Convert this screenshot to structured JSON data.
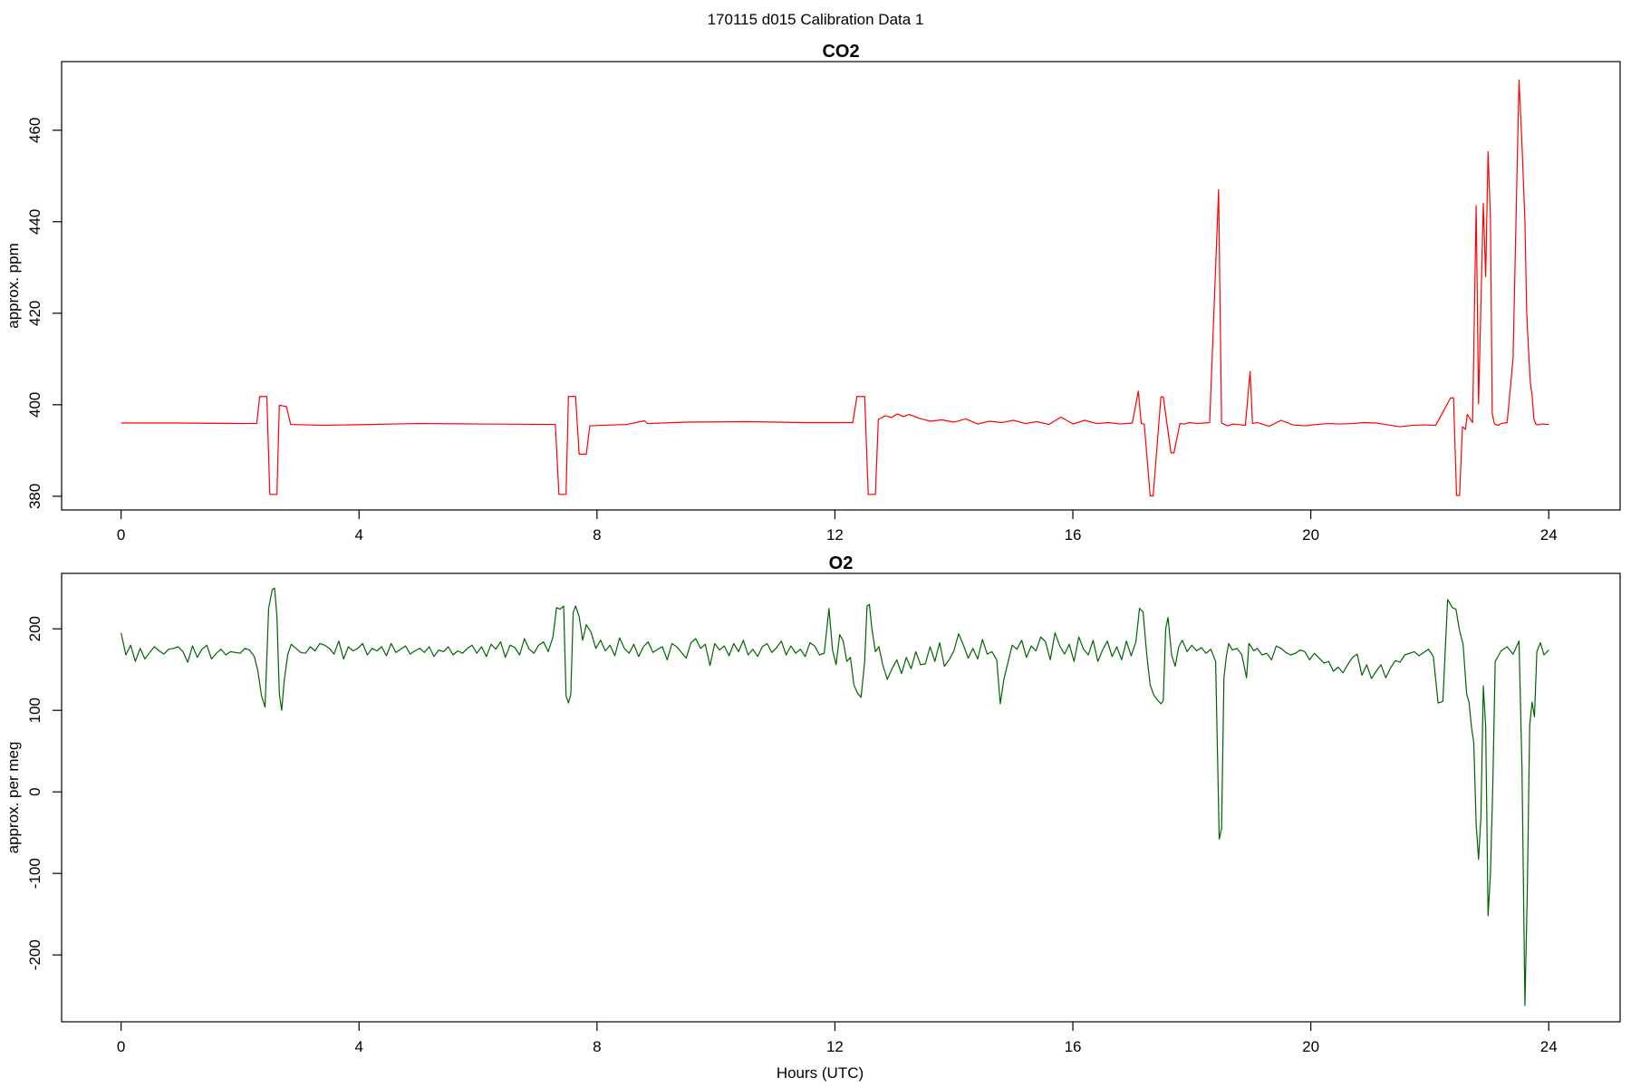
{
  "figure": {
    "title": "170115   d015   Calibration Data 1",
    "xlabel": "Hours (UTC)"
  },
  "chart_data": [
    {
      "type": "line",
      "title": "CO2",
      "xlabel": "",
      "ylabel": "approx. ppm",
      "xlim": [
        -1.0,
        25.2
      ],
      "ylim": [
        377,
        475
      ],
      "xticks": [
        0,
        4,
        8,
        12,
        16,
        20,
        24
      ],
      "yticks": [
        380,
        400,
        420,
        440,
        460
      ],
      "grid": false,
      "series": [
        {
          "color": "#ff0000",
          "x": [
            0,
            1,
            2,
            2.28,
            2.33,
            2.45,
            2.5,
            2.62,
            2.66,
            2.78,
            2.85,
            3.4,
            5,
            6,
            7.3,
            7.36,
            7.48,
            7.52,
            7.64,
            7.7,
            7.82,
            7.88,
            8.5,
            8.8,
            8.85,
            9.5,
            10.5,
            11.5,
            12.3,
            12.37,
            12.5,
            12.56,
            12.68,
            12.73,
            12.85,
            12.95,
            13.05,
            13.15,
            13.25,
            13.4,
            13.6,
            13.8,
            14,
            14.2,
            14.4,
            14.6,
            14.8,
            15,
            15.2,
            15.4,
            15.6,
            15.8,
            16,
            16.2,
            16.4,
            16.6,
            16.8,
            17.0,
            17.1,
            17.15,
            17.2,
            17.3,
            17.35,
            17.48,
            17.52,
            17.65,
            17.7,
            17.8,
            17.88,
            17.95,
            18.1,
            18.3,
            18.45,
            18.5,
            18.55,
            18.6,
            18.7,
            18.9,
            18.98,
            19.02,
            19.1,
            19.3,
            19.5,
            19.7,
            19.9,
            20.1,
            20.3,
            20.5,
            20.7,
            20.9,
            21.1,
            21.3,
            21.5,
            21.7,
            21.9,
            22.1,
            22.35,
            22.4,
            22.45,
            22.5,
            22.55,
            22.6,
            22.63,
            22.72,
            22.78,
            22.82,
            22.9,
            22.94,
            22.98,
            23.02,
            23.05,
            23.08,
            23.1,
            23.15,
            23.2,
            23.3,
            23.4,
            23.5,
            23.55,
            23.6,
            23.63,
            23.66,
            23.69,
            23.72,
            23.75,
            23.78,
            23.82,
            23.88,
            24.0
          ],
          "y": [
            396,
            396,
            395.9,
            395.9,
            401.8,
            401.8,
            380.4,
            380.4,
            399.9,
            399.6,
            395.7,
            395.5,
            395.9,
            395.8,
            395.7,
            380.4,
            380.4,
            401.8,
            401.8,
            389.2,
            389.2,
            395.4,
            395.7,
            396.5,
            395.9,
            396.2,
            396.3,
            396.1,
            396.1,
            401.8,
            401.8,
            380.4,
            380.4,
            396.8,
            397.6,
            397.2,
            398,
            397.4,
            397.9,
            397.1,
            396.4,
            396.7,
            396.2,
            396.9,
            395.8,
            396.4,
            396.1,
            396.6,
            395.9,
            396.3,
            395.7,
            397.3,
            395.8,
            396.6,
            395.9,
            396.1,
            395.8,
            396,
            403,
            395.9,
            395.8,
            380.1,
            380.1,
            401.7,
            401.7,
            389.5,
            389.5,
            395.9,
            395.8,
            396.1,
            395.9,
            396.1,
            447,
            396,
            395.7,
            395.4,
            395.8,
            395.5,
            407.3,
            395.9,
            396.1,
            395.3,
            396.6,
            395.6,
            395.4,
            395.7,
            395.9,
            395.8,
            395.9,
            396.1,
            396,
            395.6,
            395.2,
            395.5,
            395.6,
            395.5,
            401.5,
            401.5,
            380.2,
            380.2,
            395.2,
            394.6,
            397.9,
            396.1,
            443.5,
            400.2,
            444,
            428,
            455.3,
            440.7,
            398.2,
            396.1,
            395.7,
            395.5,
            395.9,
            396.1,
            410,
            471,
            457,
            440,
            420,
            412,
            405,
            402,
            397,
            395.8,
            395.6,
            395.8,
            395.7
          ]
        }
      ]
    },
    {
      "type": "line",
      "title": "O2",
      "xlabel": "Hours (UTC)",
      "ylabel": "approx. per meg",
      "xlim": [
        -1.0,
        25.2
      ],
      "ylim": [
        -282,
        268
      ],
      "xticks": [
        0,
        4,
        8,
        12,
        16,
        20,
        24
      ],
      "yticks": [
        -200,
        -100,
        0,
        100,
        200
      ],
      "grid": false,
      "series": [
        {
          "color": "#006400",
          "x": [
            0,
            0.08,
            0.16,
            0.24,
            0.32,
            0.4,
            0.48,
            0.56,
            0.64,
            0.72,
            0.8,
            0.88,
            0.96,
            1.04,
            1.12,
            1.2,
            1.28,
            1.36,
            1.44,
            1.52,
            1.6,
            1.68,
            1.76,
            1.84,
            1.92,
            2.0,
            2.08,
            2.16,
            2.24,
            2.3,
            2.36,
            2.42,
            2.48,
            2.54,
            2.58,
            2.62,
            2.66,
            2.7,
            2.74,
            2.8,
            2.86,
            2.94,
            3.02,
            3.1,
            3.18,
            3.26,
            3.34,
            3.42,
            3.5,
            3.58,
            3.66,
            3.74,
            3.82,
            3.9,
            3.98,
            4.06,
            4.14,
            4.22,
            4.3,
            4.38,
            4.46,
            4.54,
            4.62,
            4.7,
            4.78,
            4.86,
            4.94,
            5.02,
            5.1,
            5.18,
            5.26,
            5.34,
            5.42,
            5.5,
            5.58,
            5.66,
            5.74,
            5.82,
            5.9,
            5.98,
            6.06,
            6.14,
            6.22,
            6.3,
            6.38,
            6.46,
            6.54,
            6.62,
            6.7,
            6.78,
            6.86,
            6.94,
            7.02,
            7.1,
            7.18,
            7.26,
            7.32,
            7.38,
            7.44,
            7.48,
            7.52,
            7.56,
            7.6,
            7.64,
            7.7,
            7.76,
            7.82,
            7.9,
            7.98,
            8.06,
            8.14,
            8.22,
            8.3,
            8.38,
            8.46,
            8.54,
            8.62,
            8.7,
            8.78,
            8.86,
            8.94,
            9.02,
            9.1,
            9.18,
            9.26,
            9.34,
            9.42,
            9.5,
            9.58,
            9.66,
            9.74,
            9.82,
            9.9,
            9.98,
            10.06,
            10.14,
            10.22,
            10.3,
            10.38,
            10.46,
            10.54,
            10.62,
            10.7,
            10.78,
            10.86,
            10.94,
            11.02,
            11.1,
            11.18,
            11.26,
            11.34,
            11.42,
            11.5,
            11.58,
            11.66,
            11.74,
            11.82,
            11.9,
            11.96,
            12.02,
            12.08,
            12.14,
            12.2,
            12.26,
            12.32,
            12.38,
            12.44,
            12.5,
            12.54,
            12.58,
            12.62,
            12.68,
            12.74,
            12.8,
            12.88,
            12.96,
            13.04,
            13.12,
            13.2,
            13.28,
            13.36,
            13.44,
            13.52,
            13.6,
            13.68,
            13.76,
            13.84,
            13.92,
            14.0,
            14.08,
            14.16,
            14.24,
            14.32,
            14.4,
            14.48,
            14.56,
            14.64,
            14.72,
            14.78,
            14.84,
            14.9,
            14.98,
            15.06,
            15.14,
            15.22,
            15.3,
            15.38,
            15.46,
            15.54,
            15.62,
            15.7,
            15.78,
            15.86,
            15.94,
            16.02,
            16.1,
            16.18,
            16.26,
            16.34,
            16.42,
            16.5,
            16.58,
            16.66,
            16.74,
            16.82,
            16.9,
            16.98,
            17.06,
            17.12,
            17.18,
            17.24,
            17.3,
            17.36,
            17.42,
            17.48,
            17.52,
            17.56,
            17.6,
            17.66,
            17.72,
            17.78,
            17.84,
            17.92,
            18.0,
            18.08,
            18.16,
            18.24,
            18.32,
            18.4,
            18.46,
            18.5,
            18.54,
            18.58,
            18.62,
            18.68,
            18.76,
            18.84,
            18.92,
            18.96,
            19.0,
            19.04,
            19.1,
            19.18,
            19.26,
            19.34,
            19.42,
            19.5,
            19.58,
            19.66,
            19.74,
            19.82,
            19.9,
            19.98,
            20.06,
            20.14,
            20.22,
            20.3,
            20.38,
            20.46,
            20.54,
            20.62,
            20.7,
            20.78,
            20.86,
            20.94,
            21.02,
            21.1,
            21.18,
            21.26,
            21.34,
            21.42,
            21.5,
            21.58,
            21.66,
            21.74,
            21.82,
            21.9,
            21.98,
            22.06,
            22.14,
            22.22,
            22.3,
            22.38,
            22.44,
            22.5,
            22.56,
            22.62,
            22.66,
            22.7,
            22.74,
            22.78,
            22.82,
            22.86,
            22.9,
            22.94,
            22.98,
            23.02,
            23.06,
            23.1,
            23.2,
            23.3,
            23.4,
            23.5,
            23.55,
            23.6,
            23.64,
            23.68,
            23.72,
            23.76,
            23.8,
            23.86,
            23.92,
            24.0
          ],
          "y": [
            195,
            168,
            180,
            160,
            176,
            163,
            171,
            178,
            173,
            169,
            175,
            176,
            178,
            172,
            159,
            179,
            165,
            175,
            180,
            163,
            170,
            175,
            168,
            172,
            171,
            170,
            176,
            174,
            166,
            148,
            118,
            104,
            225,
            248,
            250,
            215,
            120,
            100,
            135,
            168,
            181,
            176,
            171,
            170,
            178,
            173,
            182,
            180,
            176,
            169,
            185,
            163,
            178,
            173,
            176,
            182,
            168,
            176,
            173,
            178,
            167,
            182,
            171,
            175,
            179,
            169,
            173,
            176,
            171,
            178,
            166,
            174,
            172,
            178,
            168,
            173,
            170,
            176,
            180,
            170,
            178,
            166,
            181,
            175,
            184,
            165,
            180,
            177,
            168,
            188,
            175,
            170,
            180,
            184,
            172,
            190,
            226,
            224,
            228,
            118,
            109,
            120,
            220,
            228,
            215,
            186,
            205,
            196,
            176,
            186,
            173,
            180,
            167,
            189,
            176,
            170,
            181,
            166,
            178,
            184,
            171,
            175,
            178,
            162,
            182,
            178,
            171,
            164,
            183,
            188,
            176,
            181,
            155,
            182,
            174,
            179,
            167,
            182,
            172,
            186,
            168,
            175,
            166,
            178,
            182,
            171,
            177,
            185,
            168,
            179,
            170,
            175,
            166,
            183,
            179,
            168,
            170,
            225,
            174,
            156,
            193,
            185,
            160,
            165,
            131,
            121,
            116,
            160,
            228,
            230,
            201,
            172,
            178,
            157,
            138,
            151,
            162,
            145,
            165,
            151,
            172,
            156,
            157,
            178,
            160,
            183,
            154,
            162,
            173,
            194,
            180,
            164,
            176,
            163,
            187,
            169,
            172,
            162,
            108,
            138,
            156,
            180,
            175,
            186,
            165,
            179,
            173,
            190,
            184,
            162,
            195,
            179,
            169,
            181,
            160,
            190,
            175,
            168,
            186,
            160,
            174,
            185,
            166,
            178,
            162,
            185,
            167,
            184,
            225,
            221,
            170,
            131,
            119,
            113,
            108,
            112,
            200,
            214,
            168,
            154,
            178,
            186,
            172,
            180,
            173,
            177,
            170,
            175,
            160,
            -58,
            -45,
            140,
            166,
            182,
            174,
            176,
            168,
            140,
            182,
            178,
            173,
            176,
            168,
            170,
            162,
            179,
            176,
            171,
            168,
            170,
            174,
            172,
            162,
            170,
            164,
            158,
            160,
            148,
            153,
            146,
            156,
            165,
            169,
            143,
            156,
            139,
            148,
            156,
            140,
            152,
            161,
            159,
            168,
            170,
            172,
            167,
            171,
            175,
            166,
            109,
            111,
            236,
            226,
            224,
            198,
            181,
            120,
            110,
            80,
            60,
            -40,
            -83,
            -30,
            130,
            80,
            -152,
            -100,
            10,
            160,
            173,
            178,
            169,
            185,
            30,
            -262,
            -120,
            82,
            110,
            92,
            172,
            183,
            168,
            174
          ]
        }
      ]
    }
  ]
}
